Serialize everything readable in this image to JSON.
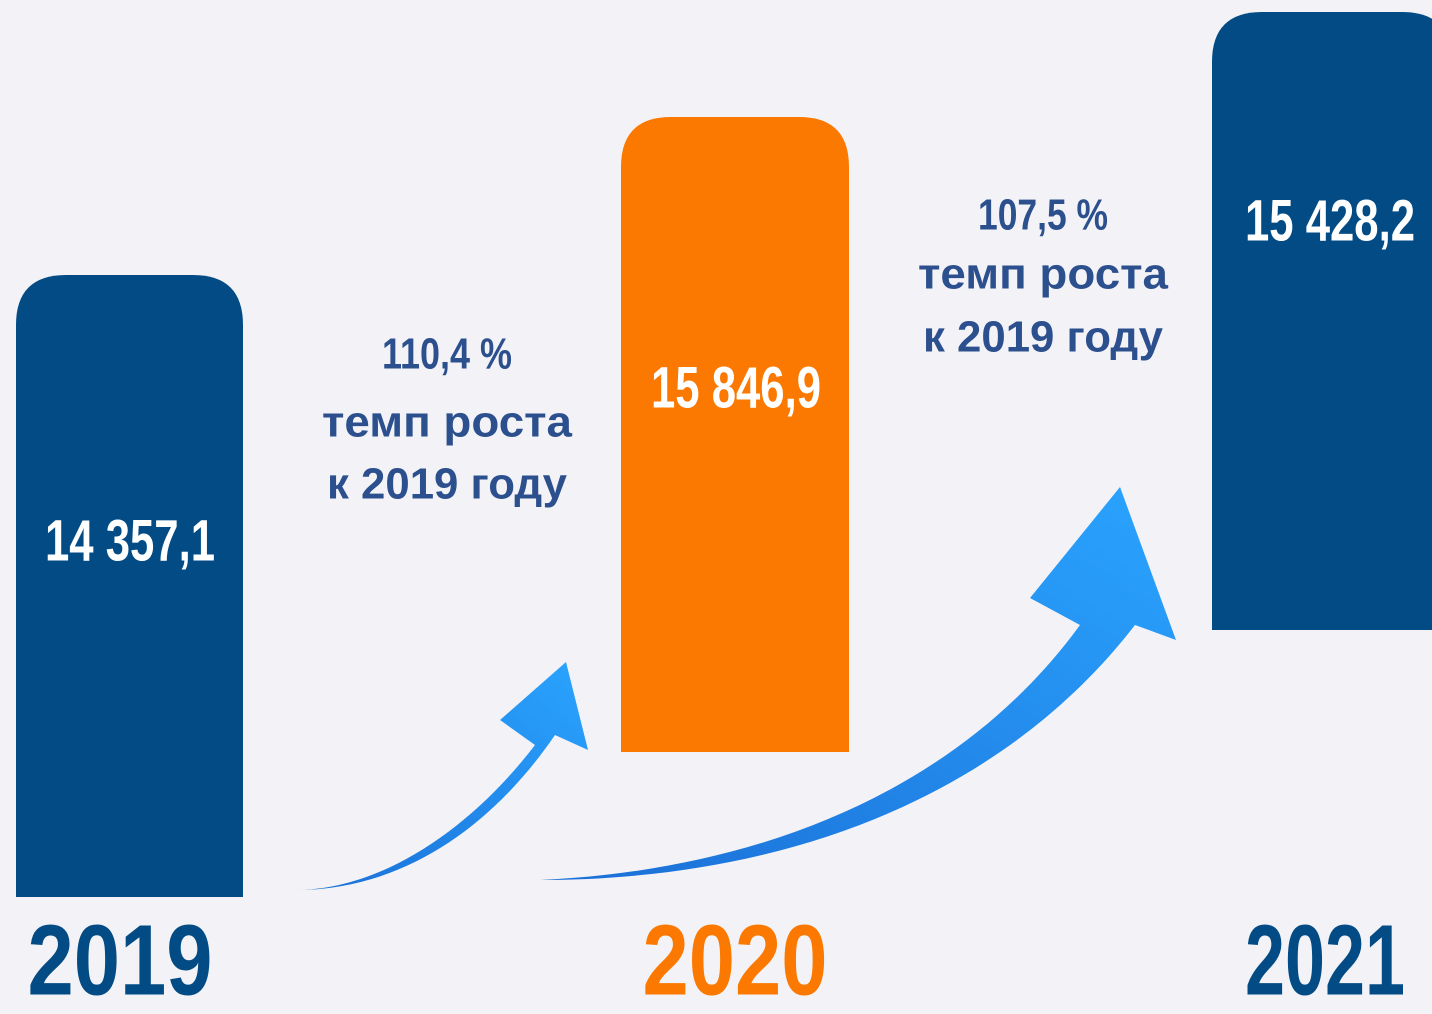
{
  "chart_data": {
    "type": "bar",
    "categories": [
      "2019",
      "2020",
      "2021"
    ],
    "values": [
      14357.1,
      15846.9,
      15428.2
    ],
    "value_labels": [
      "14 357,1",
      "15 846,9",
      "15 428,2"
    ],
    "colors": [
      "#034b84",
      "#fb7900",
      "#034b84"
    ],
    "annotations": [
      {
        "lines": [
          "110,4 %",
          "темп роста",
          "к 2019 году"
        ]
      },
      {
        "lines": [
          "107,5 %",
          "темп роста",
          "к 2019 году"
        ]
      }
    ]
  }
}
